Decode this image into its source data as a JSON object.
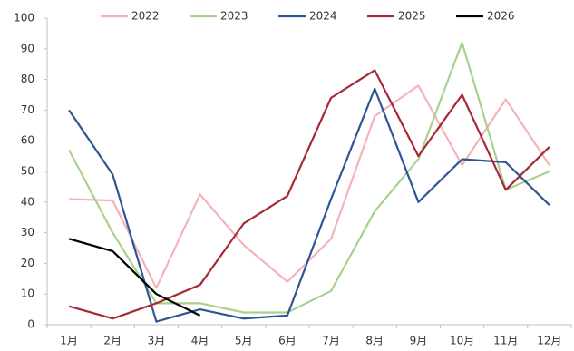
{
  "chart_data": {
    "type": "line",
    "categories": [
      "1月",
      "2月",
      "3月",
      "4月",
      "5月",
      "6月",
      "7月",
      "8月",
      "9月",
      "10月",
      "11月",
      "12月"
    ],
    "series": [
      {
        "name": "2022",
        "color": "#f4b3bb",
        "values": [
          41,
          40.5,
          12,
          42.5,
          26,
          14,
          28,
          68,
          78,
          52,
          73.5,
          52
        ]
      },
      {
        "name": "2023",
        "color": "#a9d18e",
        "values": [
          57,
          30,
          7,
          7,
          4,
          4,
          11,
          37,
          54,
          92,
          44,
          50
        ]
      },
      {
        "name": "2024",
        "color": "#2f5597",
        "values": [
          70,
          49,
          1,
          5,
          2,
          3,
          41,
          77,
          40,
          54,
          53,
          39
        ]
      },
      {
        "name": "2025",
        "color": "#a52a35",
        "values": [
          6,
          2,
          7,
          13,
          33,
          42,
          74,
          83,
          55,
          75,
          44,
          58
        ]
      },
      {
        "name": "2026",
        "color": "#000000",
        "values": [
          28,
          24,
          10,
          3,
          null,
          null,
          null,
          null,
          null,
          null,
          null,
          null
        ]
      }
    ],
    "ylim": [
      0,
      100
    ],
    "yticks": [
      0,
      10,
      20,
      30,
      40,
      50,
      60,
      70,
      80,
      90,
      100
    ],
    "grid": false,
    "legend": "top"
  }
}
